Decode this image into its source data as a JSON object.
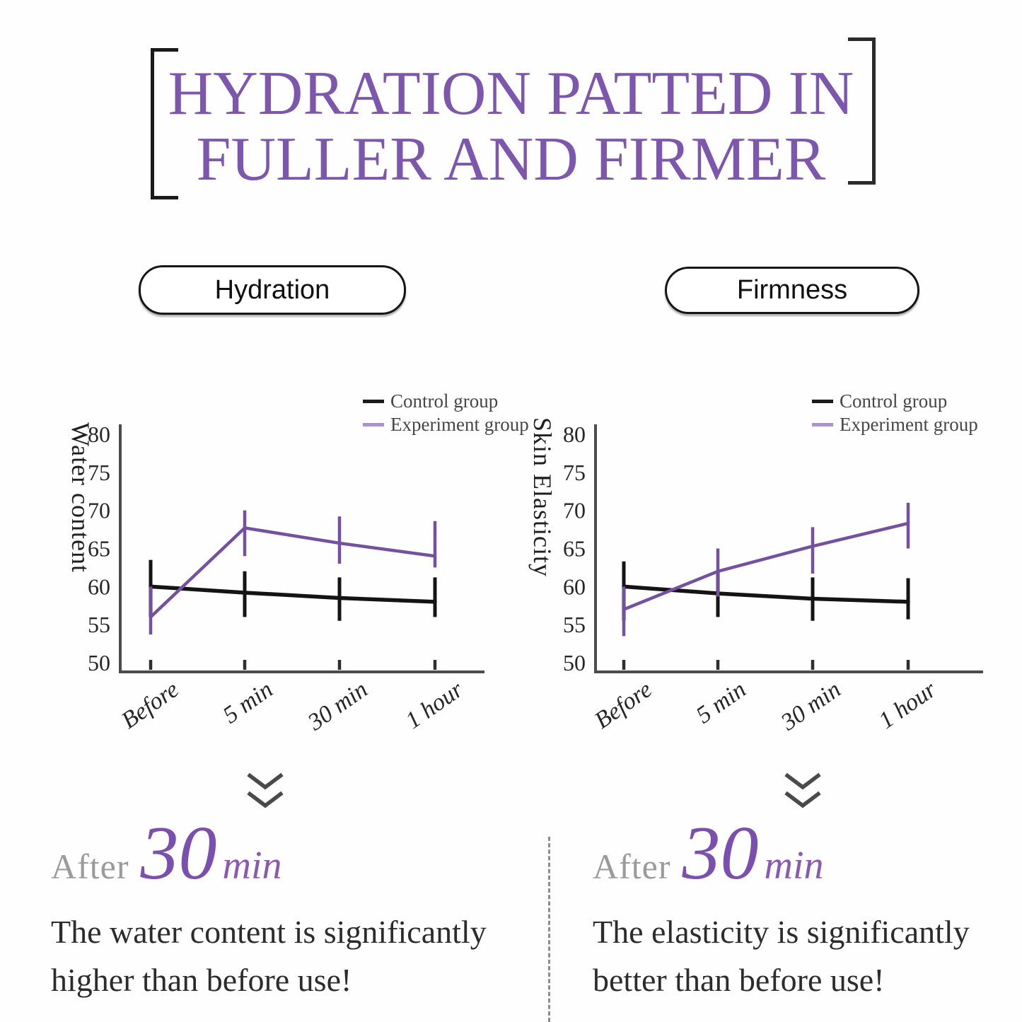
{
  "title": {
    "line1": "HYDRATION PATTED IN",
    "line2": "FULLER AND FIRMER"
  },
  "colors": {
    "title_purple": "#7d57ae",
    "experiment_line": "#7450a0",
    "experiment_legend_swatch": "#aa93cc",
    "control_line": "#141414",
    "axis": "#4c4c4c",
    "after_gray": "#9b9b9b",
    "after_purple": "#7b4fad",
    "body_text": "#2c2c2c"
  },
  "icons": {
    "section_pointer": "double-chevron-down"
  },
  "chart_data": [
    {
      "type": "line",
      "title": "Hydration",
      "ylabel": "Water content",
      "categories": [
        "Before",
        "5 min",
        "30 min",
        "1 hour"
      ],
      "yticks": [
        50,
        55,
        60,
        65,
        70,
        75,
        80
      ],
      "ylim": [
        48.5,
        81
      ],
      "grid": false,
      "legend_position": "top-right",
      "series": [
        {
          "name": "Control group",
          "color": "#141414",
          "values": [
            60,
            59.2,
            58.5,
            58
          ],
          "err_low": [
            56,
            56,
            55.5,
            56
          ],
          "err_high": [
            63.5,
            62,
            61.2,
            61.2
          ]
        },
        {
          "name": "Experiment group",
          "color": "#7450a0",
          "values": [
            56,
            67.7,
            65.7,
            64
          ],
          "err_low": [
            53.7,
            64,
            63,
            62.5
          ],
          "err_high": [
            60,
            70,
            69.2,
            68.6
          ]
        }
      ]
    },
    {
      "type": "line",
      "title": "Firmness",
      "ylabel": "Skin Elasticity",
      "categories": [
        "Before",
        "5 min",
        "30 min",
        "1 hour"
      ],
      "yticks": [
        50,
        55,
        60,
        65,
        70,
        75,
        80
      ],
      "ylim": [
        48.5,
        81
      ],
      "grid": false,
      "legend_position": "top-right",
      "series": [
        {
          "name": "Control group",
          "color": "#141414",
          "values": [
            60,
            59.1,
            58.4,
            58
          ],
          "err_low": [
            55.5,
            56,
            55.5,
            55.7
          ],
          "err_high": [
            63.3,
            62,
            61.2,
            61.1
          ]
        },
        {
          "name": "Experiment group",
          "color": "#7450a0",
          "values": [
            57,
            62,
            65.3,
            68.3
          ],
          "err_low": [
            53.5,
            58.7,
            61.7,
            65
          ],
          "err_high": [
            60,
            65,
            67.8,
            71
          ]
        }
      ]
    }
  ],
  "results": [
    {
      "prefix": "After",
      "highlight": "30",
      "unit": "min",
      "line1": "The water content is significantly",
      "line2": "higher than before use!"
    },
    {
      "prefix": "After",
      "highlight": "30",
      "unit": "min",
      "line1": "The elasticity is significantly",
      "line2": "better than before use!"
    }
  ]
}
